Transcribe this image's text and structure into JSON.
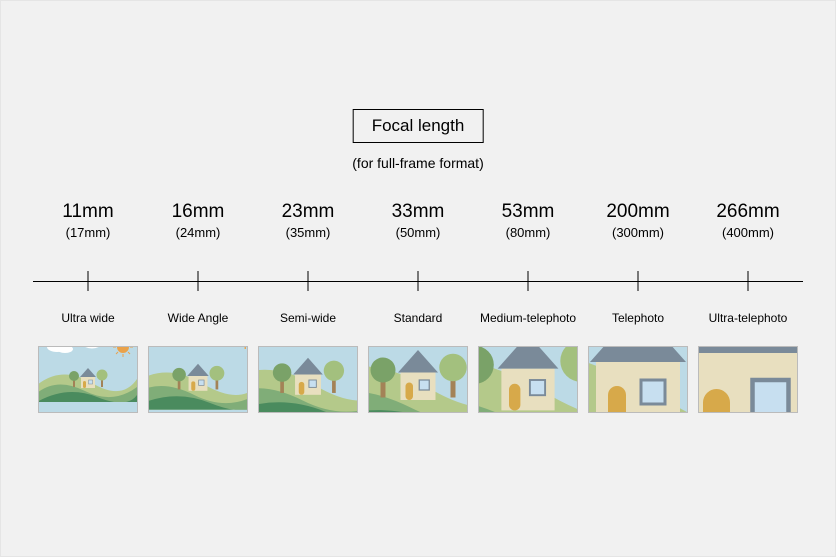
{
  "title": "Focal length",
  "subtitle": "(for full-frame format)",
  "columns": [
    {
      "focal": "11mm",
      "full_frame": "(17mm)",
      "label": "Ultra wide",
      "zoom": 1.0
    },
    {
      "focal": "16mm",
      "full_frame": "(24mm)",
      "label": "Wide Angle",
      "zoom": 1.35
    },
    {
      "focal": "23mm",
      "full_frame": "(35mm)",
      "label": "Semi-wide",
      "zoom": 1.85
    },
    {
      "focal": "33mm",
      "full_frame": "(50mm)",
      "label": "Standard",
      "zoom": 2.5
    },
    {
      "focal": "53mm",
      "full_frame": "(80mm)",
      "label": "Medium-telephoto",
      "zoom": 3.8
    },
    {
      "focal": "200mm",
      "full_frame": "(300mm)",
      "label": "Telephoto",
      "zoom": 6.0
    },
    {
      "focal": "266mm",
      "full_frame": "(400mm)",
      "label": "Ultra-telephoto",
      "zoom": 9.0
    }
  ],
  "axis": {
    "ticks_pct": [
      7.1,
      21.4,
      35.7,
      50,
      64.3,
      78.6,
      92.9
    ]
  },
  "palette": {
    "sky": "#bcdae6",
    "hill1": "#4a8b5e",
    "hill2": "#80ad78",
    "hill3": "#b4c98a",
    "house_wall": "#e8dfbf",
    "house_roof": "#7a8a99",
    "door": "#d7a94a",
    "window": "#c7dff0",
    "tree_trunk": "#a38257",
    "tree_leaf1": "#7aa268",
    "tree_leaf2": "#a3c07e",
    "sun": "#eaa24a",
    "cloud": "#ffffff"
  },
  "background_color": "#f1f1f1",
  "text_color": "#000000",
  "font_sizes": {
    "title": 17,
    "subtitle": 14,
    "focal": 19,
    "focal_sub": 13,
    "label": 12
  }
}
